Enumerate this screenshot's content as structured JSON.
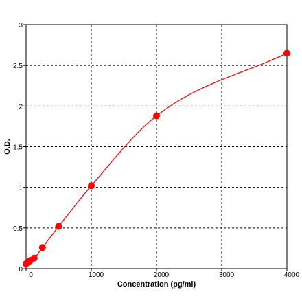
{
  "chart_data": {
    "type": "scatter",
    "title": "",
    "xlabel": "Concentration (pg/ml)",
    "ylabel": "O.D.",
    "xlim": [
      0,
      4000
    ],
    "ylim": [
      0,
      3
    ],
    "x_ticks": [
      "0",
      "1000",
      "2000",
      "3000",
      "4000"
    ],
    "y_ticks": [
      "0",
      "0.5",
      "1",
      "1.5",
      "2",
      "2.5",
      "3"
    ],
    "grid": true,
    "grid_style": "dashed",
    "series": [
      {
        "color": "#ff0000",
        "points": [
          {
            "x": 0,
            "y": 0.06
          },
          {
            "x": 31.25,
            "y": 0.08
          },
          {
            "x": 62.5,
            "y": 0.1
          },
          {
            "x": 125,
            "y": 0.13
          },
          {
            "x": 250,
            "y": 0.26
          },
          {
            "x": 500,
            "y": 0.52
          },
          {
            "x": 1000,
            "y": 1.02
          },
          {
            "x": 2000,
            "y": 1.88
          },
          {
            "x": 4000,
            "y": 2.65
          }
        ]
      }
    ]
  }
}
